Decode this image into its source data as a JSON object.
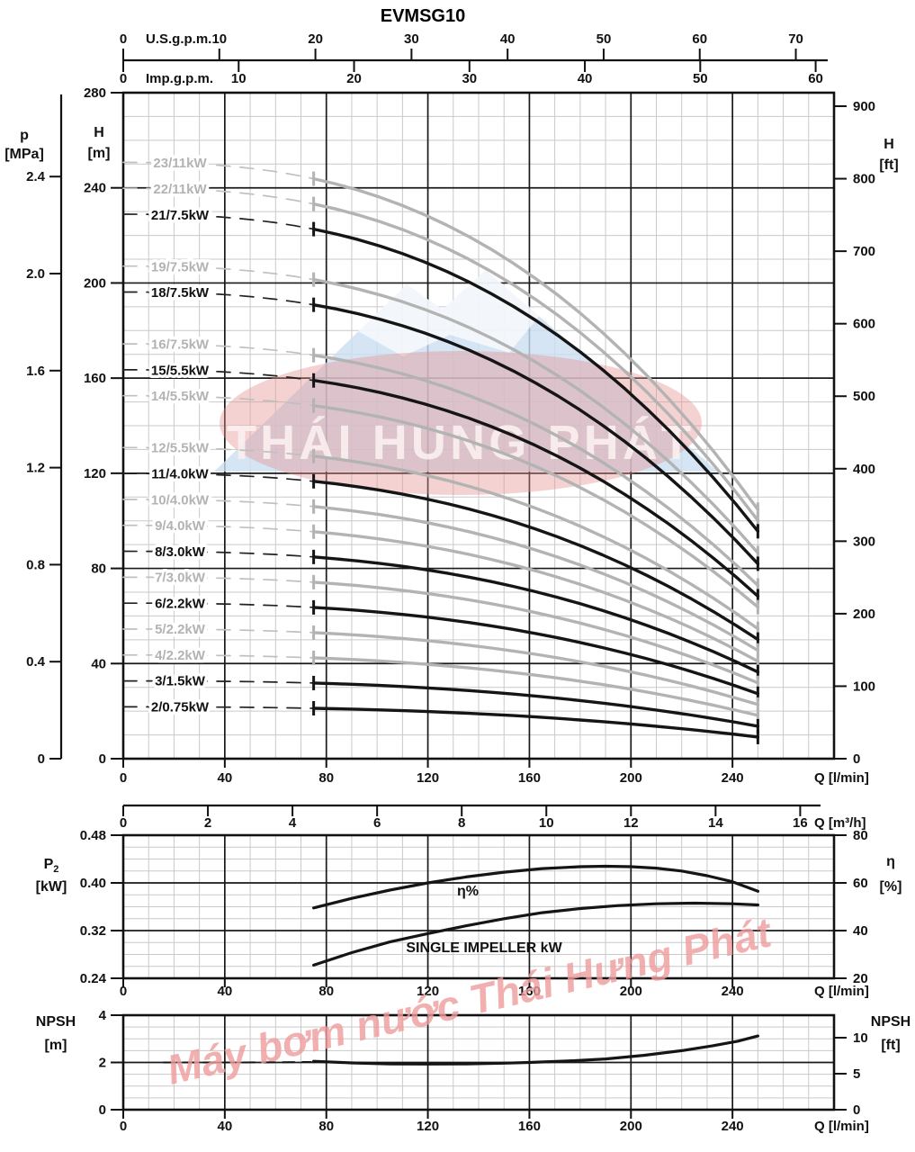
{
  "title": "EVMSG10",
  "watermark": {
    "ellipse_text": "THÁI HUNG PHÁT",
    "diagonal_text": "Máy bơm nước Thái Hưng Phát",
    "ellipse_color": "#e89494",
    "mountain_color": "#cadef0",
    "snow_color": "#ffffff",
    "ellipse_text_color": "#fbf0f0",
    "diagonal_text_color": "#f09c9c"
  },
  "colors": {
    "black_curve": "#151515",
    "gray_curve": "#b3b3b3",
    "gray_label": "#b3b3b3",
    "grid_minor": "#c9c9c9",
    "grid_major": "#1a1a1a",
    "axis": "#111111"
  },
  "axis_text": {
    "us_gpm": "U.S.g.p.m.",
    "imp_gpm": "Imp.g.p.m.",
    "p": "p",
    "mpa": "[MPa]",
    "h": "H",
    "m": "[m]",
    "ft": "[ft]",
    "q_lmin": "Q [l/min]",
    "q_m3h": "Q [m³/h]",
    "p2_symbol": "P",
    "p2_sub": "2",
    "kw_unit": "[kW]",
    "eta": "η",
    "pct": "[%]",
    "npsh": "NPSH"
  },
  "chart_data": [
    {
      "id": "head_curves",
      "type": "line",
      "title": "EVMSG10",
      "x_axis": {
        "label": "Q [l/min]",
        "range": [
          0,
          280
        ],
        "major_ticks": [
          0,
          40,
          80,
          120,
          160,
          200,
          240
        ],
        "minor_step": 10
      },
      "x_axis_m3h": {
        "label": "Q [m³/h]",
        "ticks": [
          0,
          2,
          4,
          6,
          8,
          10,
          12,
          14,
          16
        ],
        "lpm_per_unit": 16.667
      },
      "x_axis_usgpm": {
        "label": "U.S.g.p.m.",
        "ticks": [
          0,
          10,
          20,
          30,
          40,
          50,
          60,
          70
        ],
        "lpm_per_unit": 3.785
      },
      "x_axis_impgpm": {
        "label": "Imp.g.p.m.",
        "ticks": [
          0,
          10,
          20,
          30,
          40,
          50,
          60
        ],
        "lpm_per_unit": 4.546
      },
      "y_axis": {
        "label": "H [m]",
        "range": [
          0,
          280
        ],
        "major_ticks": [
          0,
          40,
          80,
          120,
          160,
          200,
          240,
          280
        ],
        "minor_step": 10
      },
      "y_axis_ft": {
        "label": "H [ft]",
        "ticks": [
          0,
          100,
          200,
          300,
          400,
          500,
          600,
          700,
          800,
          900
        ],
        "m_per_ft": 0.3048
      },
      "y_axis_mpa": {
        "label": "p [MPa]",
        "ticks": [
          "0",
          "0.4",
          "0.8",
          "1.2",
          "1.6",
          "2.0",
          "2.4"
        ],
        "m_per_mpa": 101.97
      },
      "head_model": {
        "shutoff_m_per_stage": 10.9,
        "coeff": 5.15e-06,
        "exponent": 2.54,
        "dashed_from_lpm": 0,
        "solid_from_lpm": 75,
        "end_lpm": 250,
        "label_at_lpm": 22
      },
      "series": [
        {
          "stages": 23,
          "label": "23/11kW",
          "tone": "gray"
        },
        {
          "stages": 22,
          "label": "22/11kW",
          "tone": "gray"
        },
        {
          "stages": 21,
          "label": "21/7.5kW",
          "tone": "black"
        },
        {
          "stages": 19,
          "label": "19/7.5kW",
          "tone": "gray"
        },
        {
          "stages": 18,
          "label": "18/7.5kW",
          "tone": "black"
        },
        {
          "stages": 16,
          "label": "16/7.5kW",
          "tone": "gray"
        },
        {
          "stages": 15,
          "label": "15/5.5kW",
          "tone": "black"
        },
        {
          "stages": 14,
          "label": "14/5.5kW",
          "tone": "gray"
        },
        {
          "stages": 12,
          "label": "12/5.5kW",
          "tone": "gray"
        },
        {
          "stages": 11,
          "label": "11/4.0kW",
          "tone": "black"
        },
        {
          "stages": 10,
          "label": "10/4.0kW",
          "tone": "gray"
        },
        {
          "stages": 9,
          "label": "9/4.0kW",
          "tone": "gray"
        },
        {
          "stages": 8,
          "label": "8/3.0kW",
          "tone": "black"
        },
        {
          "stages": 7,
          "label": "7/3.0kW",
          "tone": "gray"
        },
        {
          "stages": 6,
          "label": "6/2.2kW",
          "tone": "black"
        },
        {
          "stages": 5,
          "label": "5/2.2kW",
          "tone": "gray"
        },
        {
          "stages": 4,
          "label": "4/2.2kW",
          "tone": "gray"
        },
        {
          "stages": 3,
          "label": "3/1.5kW",
          "tone": "black"
        },
        {
          "stages": 2,
          "label": "2/0.75kW",
          "tone": "black"
        }
      ]
    },
    {
      "id": "power_efficiency",
      "type": "line",
      "x_axis": {
        "label": "Q [l/min]",
        "range": [
          0,
          280
        ],
        "major_ticks": [
          0,
          40,
          80,
          120,
          160,
          200,
          240
        ],
        "minor_step": 10
      },
      "y_axis_kw": {
        "label": "P2 [kW]",
        "range": [
          0.24,
          0.48
        ],
        "ticks": [
          "0.48",
          "0.40",
          "0.32",
          "0.24"
        ],
        "major_step": 0.08,
        "minor_step": 0.02
      },
      "y_axis_eta": {
        "label": "η [%]",
        "range": [
          20,
          80
        ],
        "ticks": [
          80,
          60,
          40,
          20
        ]
      },
      "annotations": {
        "eta_label": "η%",
        "impeller_label": "SINGLE IMPELLER kW"
      },
      "curves": [
        {
          "name": "η%",
          "axis": "eta",
          "style": "solid",
          "points": [
            [
              75,
              49.5
            ],
            [
              90,
              53.5
            ],
            [
              105,
              57
            ],
            [
              120,
              60
            ],
            [
              135,
              62.5
            ],
            [
              150,
              64.5
            ],
            [
              165,
              66
            ],
            [
              180,
              66.8
            ],
            [
              190,
              67
            ],
            [
              200,
              66.8
            ],
            [
              210,
              66.2
            ],
            [
              220,
              65
            ],
            [
              230,
              63
            ],
            [
              240,
              60.5
            ],
            [
              250,
              56.5
            ]
          ]
        },
        {
          "name": "SINGLE IMPELLER kW",
          "axis": "kw",
          "style": "solid",
          "points": [
            [
              75,
              0.262
            ],
            [
              90,
              0.283
            ],
            [
              105,
              0.301
            ],
            [
              120,
              0.315
            ],
            [
              135,
              0.328
            ],
            [
              150,
              0.34
            ],
            [
              165,
              0.35
            ],
            [
              180,
              0.357
            ],
            [
              195,
              0.362
            ],
            [
              210,
              0.365
            ],
            [
              225,
              0.366
            ],
            [
              240,
              0.365
            ],
            [
              250,
              0.363
            ]
          ]
        }
      ]
    },
    {
      "id": "npsh",
      "type": "line",
      "x_axis": {
        "label": "Q [l/min]",
        "range": [
          0,
          280
        ],
        "major_ticks": [
          0,
          40,
          80,
          120,
          160,
          200,
          240
        ],
        "minor_step": 10
      },
      "y_axis_m": {
        "label": "NPSH [m]",
        "range": [
          0,
          4
        ],
        "ticks": [
          4,
          2,
          0
        ],
        "major_step": 2,
        "minor_step": 0.5
      },
      "y_axis_ft": {
        "label": "NPSH [ft]",
        "ticks": [
          10,
          5,
          0
        ],
        "m_per_ft": 0.3048
      },
      "curves": [
        {
          "name": "NPSH",
          "style": "dashed",
          "points": [
            [
              16,
              2.0
            ],
            [
              45,
              2.0
            ],
            [
              74,
              2.02
            ]
          ]
        },
        {
          "name": "NPSH",
          "style": "solid",
          "points": [
            [
              75,
              2.05
            ],
            [
              90,
              1.98
            ],
            [
              105,
              1.94
            ],
            [
              120,
              1.93
            ],
            [
              135,
              1.94
            ],
            [
              150,
              1.97
            ],
            [
              160,
              2.0
            ],
            [
              175,
              2.06
            ],
            [
              190,
              2.15
            ],
            [
              205,
              2.3
            ],
            [
              220,
              2.5
            ],
            [
              232,
              2.7
            ],
            [
              242,
              2.9
            ],
            [
              250,
              3.12
            ]
          ]
        }
      ]
    }
  ]
}
